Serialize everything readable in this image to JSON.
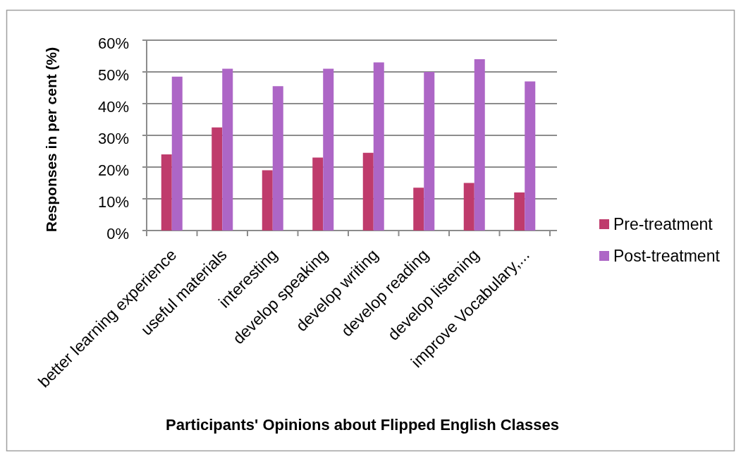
{
  "chart_data": {
    "type": "bar",
    "xlabel": "Participants' Opinions about Flipped English Classes",
    "ylabel": "Responses in per cent (%)",
    "categories": [
      "better learning experience",
      "useful materials",
      "interesting",
      "develop speaking",
      "develop writing",
      "develop reading",
      "develop listening",
      "improve Vocabulary,..."
    ],
    "series": [
      {
        "name": "Pre-treatment",
        "color": "#bf3b6c",
        "values": [
          24,
          32.5,
          19,
          23,
          24.5,
          13.5,
          15,
          12
        ]
      },
      {
        "name": "Post-treatment",
        "color": "#ad66c6",
        "values": [
          48.5,
          51,
          45.5,
          51,
          53,
          50,
          54,
          47
        ]
      }
    ],
    "ylim": [
      0,
      60
    ],
    "yticks": [
      {
        "value": 0,
        "label": "0%"
      },
      {
        "value": 10,
        "label": "10%"
      },
      {
        "value": 20,
        "label": "20%"
      },
      {
        "value": 30,
        "label": "30%"
      },
      {
        "value": 40,
        "label": "40%"
      },
      {
        "value": 50,
        "label": "50%"
      },
      {
        "value": 60,
        "label": "60%"
      }
    ],
    "grid": "y",
    "legend": "right"
  }
}
